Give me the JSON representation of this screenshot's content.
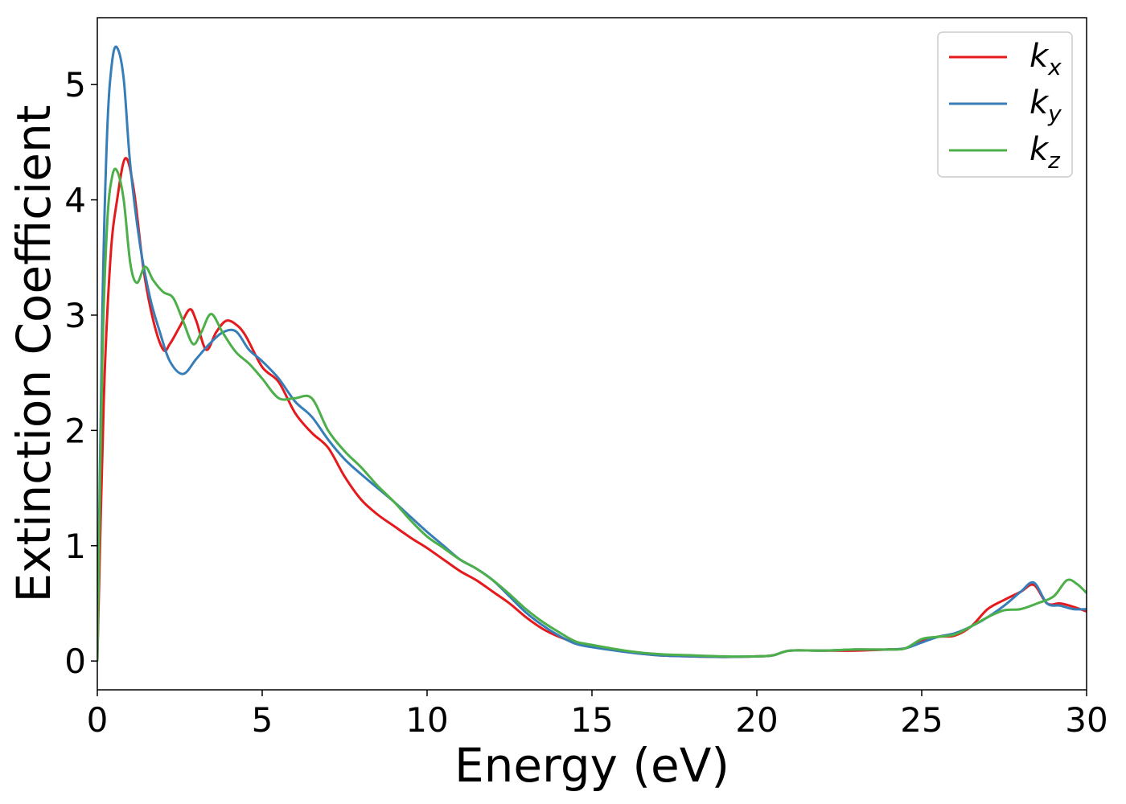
{
  "chart_data": {
    "type": "line",
    "xlabel": "Energy (eV)",
    "ylabel": "Extinction Coefficient",
    "xlim": [
      0,
      30
    ],
    "ylim": [
      -0.25,
      5.58
    ],
    "xticks": [
      0,
      5,
      10,
      15,
      20,
      25,
      30
    ],
    "yticks": [
      0,
      1,
      2,
      3,
      4,
      5
    ],
    "xtick_labels": [
      "0",
      "5",
      "10",
      "15",
      "20",
      "25",
      "30"
    ],
    "ytick_labels": [
      "0",
      "1",
      "2",
      "3",
      "4",
      "5"
    ],
    "grid": false,
    "legend_position": "top-right",
    "series": [
      {
        "name": "k",
        "subscript": "x",
        "color": "#e41a1c",
        "x": [
          0,
          0.2,
          0.4,
          0.6,
          0.85,
          1.1,
          1.4,
          1.7,
          2.0,
          2.2,
          2.5,
          2.8,
          3.0,
          3.3,
          3.6,
          3.9,
          4.2,
          4.5,
          5.0,
          5.5,
          6.0,
          6.5,
          7.0,
          7.5,
          8.0,
          8.5,
          9.0,
          9.5,
          10.0,
          10.5,
          11.0,
          11.5,
          12.0,
          12.5,
          13.0,
          13.5,
          14.0,
          14.5,
          15.0,
          16.0,
          17.0,
          18.0,
          19.0,
          20.0,
          20.5,
          21.0,
          22.0,
          23.0,
          24.0,
          24.5,
          25.0,
          25.5,
          26.0,
          26.5,
          27.0,
          27.5,
          28.0,
          28.4,
          28.8,
          29.2,
          29.6,
          30.0
        ],
        "y": [
          0.0,
          2.3,
          3.5,
          4.0,
          4.36,
          4.1,
          3.4,
          2.95,
          2.7,
          2.75,
          2.9,
          3.05,
          2.95,
          2.7,
          2.85,
          2.95,
          2.92,
          2.82,
          2.55,
          2.42,
          2.15,
          1.98,
          1.85,
          1.6,
          1.4,
          1.27,
          1.17,
          1.07,
          0.98,
          0.88,
          0.78,
          0.7,
          0.6,
          0.5,
          0.38,
          0.28,
          0.21,
          0.16,
          0.13,
          0.08,
          0.05,
          0.04,
          0.035,
          0.04,
          0.05,
          0.09,
          0.09,
          0.09,
          0.1,
          0.11,
          0.17,
          0.21,
          0.22,
          0.3,
          0.45,
          0.53,
          0.6,
          0.66,
          0.5,
          0.5,
          0.47,
          0.43
        ]
      },
      {
        "name": "k",
        "subscript": "y",
        "color": "#377eb8",
        "x": [
          0,
          0.15,
          0.3,
          0.45,
          0.6,
          0.8,
          1.0,
          1.3,
          1.6,
          1.9,
          2.2,
          2.6,
          3.0,
          3.4,
          3.8,
          4.2,
          4.6,
          5.0,
          5.5,
          6.0,
          6.5,
          7.0,
          7.5,
          8.0,
          8.5,
          9.0,
          9.5,
          10.0,
          10.5,
          11.0,
          11.5,
          12.0,
          12.5,
          13.0,
          13.5,
          14.0,
          14.5,
          15.0,
          16.0,
          17.0,
          18.0,
          19.0,
          20.0,
          20.5,
          21.0,
          22.0,
          23.0,
          24.0,
          24.5,
          25.0,
          25.5,
          26.0,
          26.5,
          27.0,
          27.5,
          28.0,
          28.4,
          28.8,
          29.2,
          29.6,
          30.0
        ],
        "y": [
          0.0,
          3.0,
          4.6,
          5.2,
          5.32,
          5.05,
          4.3,
          3.6,
          3.15,
          2.85,
          2.6,
          2.49,
          2.62,
          2.75,
          2.85,
          2.86,
          2.7,
          2.6,
          2.45,
          2.25,
          2.12,
          1.92,
          1.75,
          1.62,
          1.5,
          1.38,
          1.25,
          1.12,
          1.0,
          0.88,
          0.8,
          0.7,
          0.56,
          0.42,
          0.31,
          0.22,
          0.15,
          0.12,
          0.08,
          0.05,
          0.04,
          0.035,
          0.04,
          0.05,
          0.09,
          0.09,
          0.1,
          0.1,
          0.11,
          0.16,
          0.21,
          0.24,
          0.3,
          0.38,
          0.48,
          0.6,
          0.68,
          0.5,
          0.48,
          0.45,
          0.45
        ]
      },
      {
        "name": "k",
        "subscript": "z",
        "color": "#4daf4a",
        "x": [
          0,
          0.15,
          0.3,
          0.45,
          0.6,
          0.8,
          1.0,
          1.2,
          1.45,
          1.7,
          2.0,
          2.3,
          2.6,
          2.9,
          3.15,
          3.45,
          3.8,
          4.2,
          4.6,
          5.0,
          5.5,
          6.0,
          6.5,
          7.0,
          7.5,
          8.0,
          8.5,
          9.0,
          9.5,
          10.0,
          10.5,
          11.0,
          11.5,
          12.0,
          12.5,
          13.0,
          13.5,
          14.0,
          14.5,
          15.0,
          16.0,
          17.0,
          18.0,
          19.0,
          20.0,
          20.5,
          21.0,
          22.0,
          23.0,
          24.0,
          24.5,
          25.0,
          25.5,
          26.0,
          26.5,
          27.0,
          27.5,
          28.0,
          28.5,
          29.0,
          29.4,
          29.7,
          30.0
        ],
        "y": [
          0.0,
          2.6,
          3.8,
          4.2,
          4.25,
          4.0,
          3.45,
          3.28,
          3.42,
          3.3,
          3.2,
          3.15,
          2.95,
          2.75,
          2.85,
          3.01,
          2.85,
          2.68,
          2.58,
          2.45,
          2.28,
          2.28,
          2.28,
          2.0,
          1.82,
          1.68,
          1.52,
          1.38,
          1.22,
          1.08,
          0.98,
          0.88,
          0.8,
          0.7,
          0.58,
          0.45,
          0.34,
          0.25,
          0.17,
          0.14,
          0.09,
          0.06,
          0.05,
          0.04,
          0.04,
          0.05,
          0.09,
          0.09,
          0.1,
          0.1,
          0.11,
          0.19,
          0.21,
          0.23,
          0.3,
          0.38,
          0.44,
          0.45,
          0.5,
          0.56,
          0.7,
          0.67,
          0.59
        ]
      }
    ]
  },
  "colors": {
    "kx": "#e41a1c",
    "ky": "#377eb8",
    "kz": "#4daf4a"
  }
}
